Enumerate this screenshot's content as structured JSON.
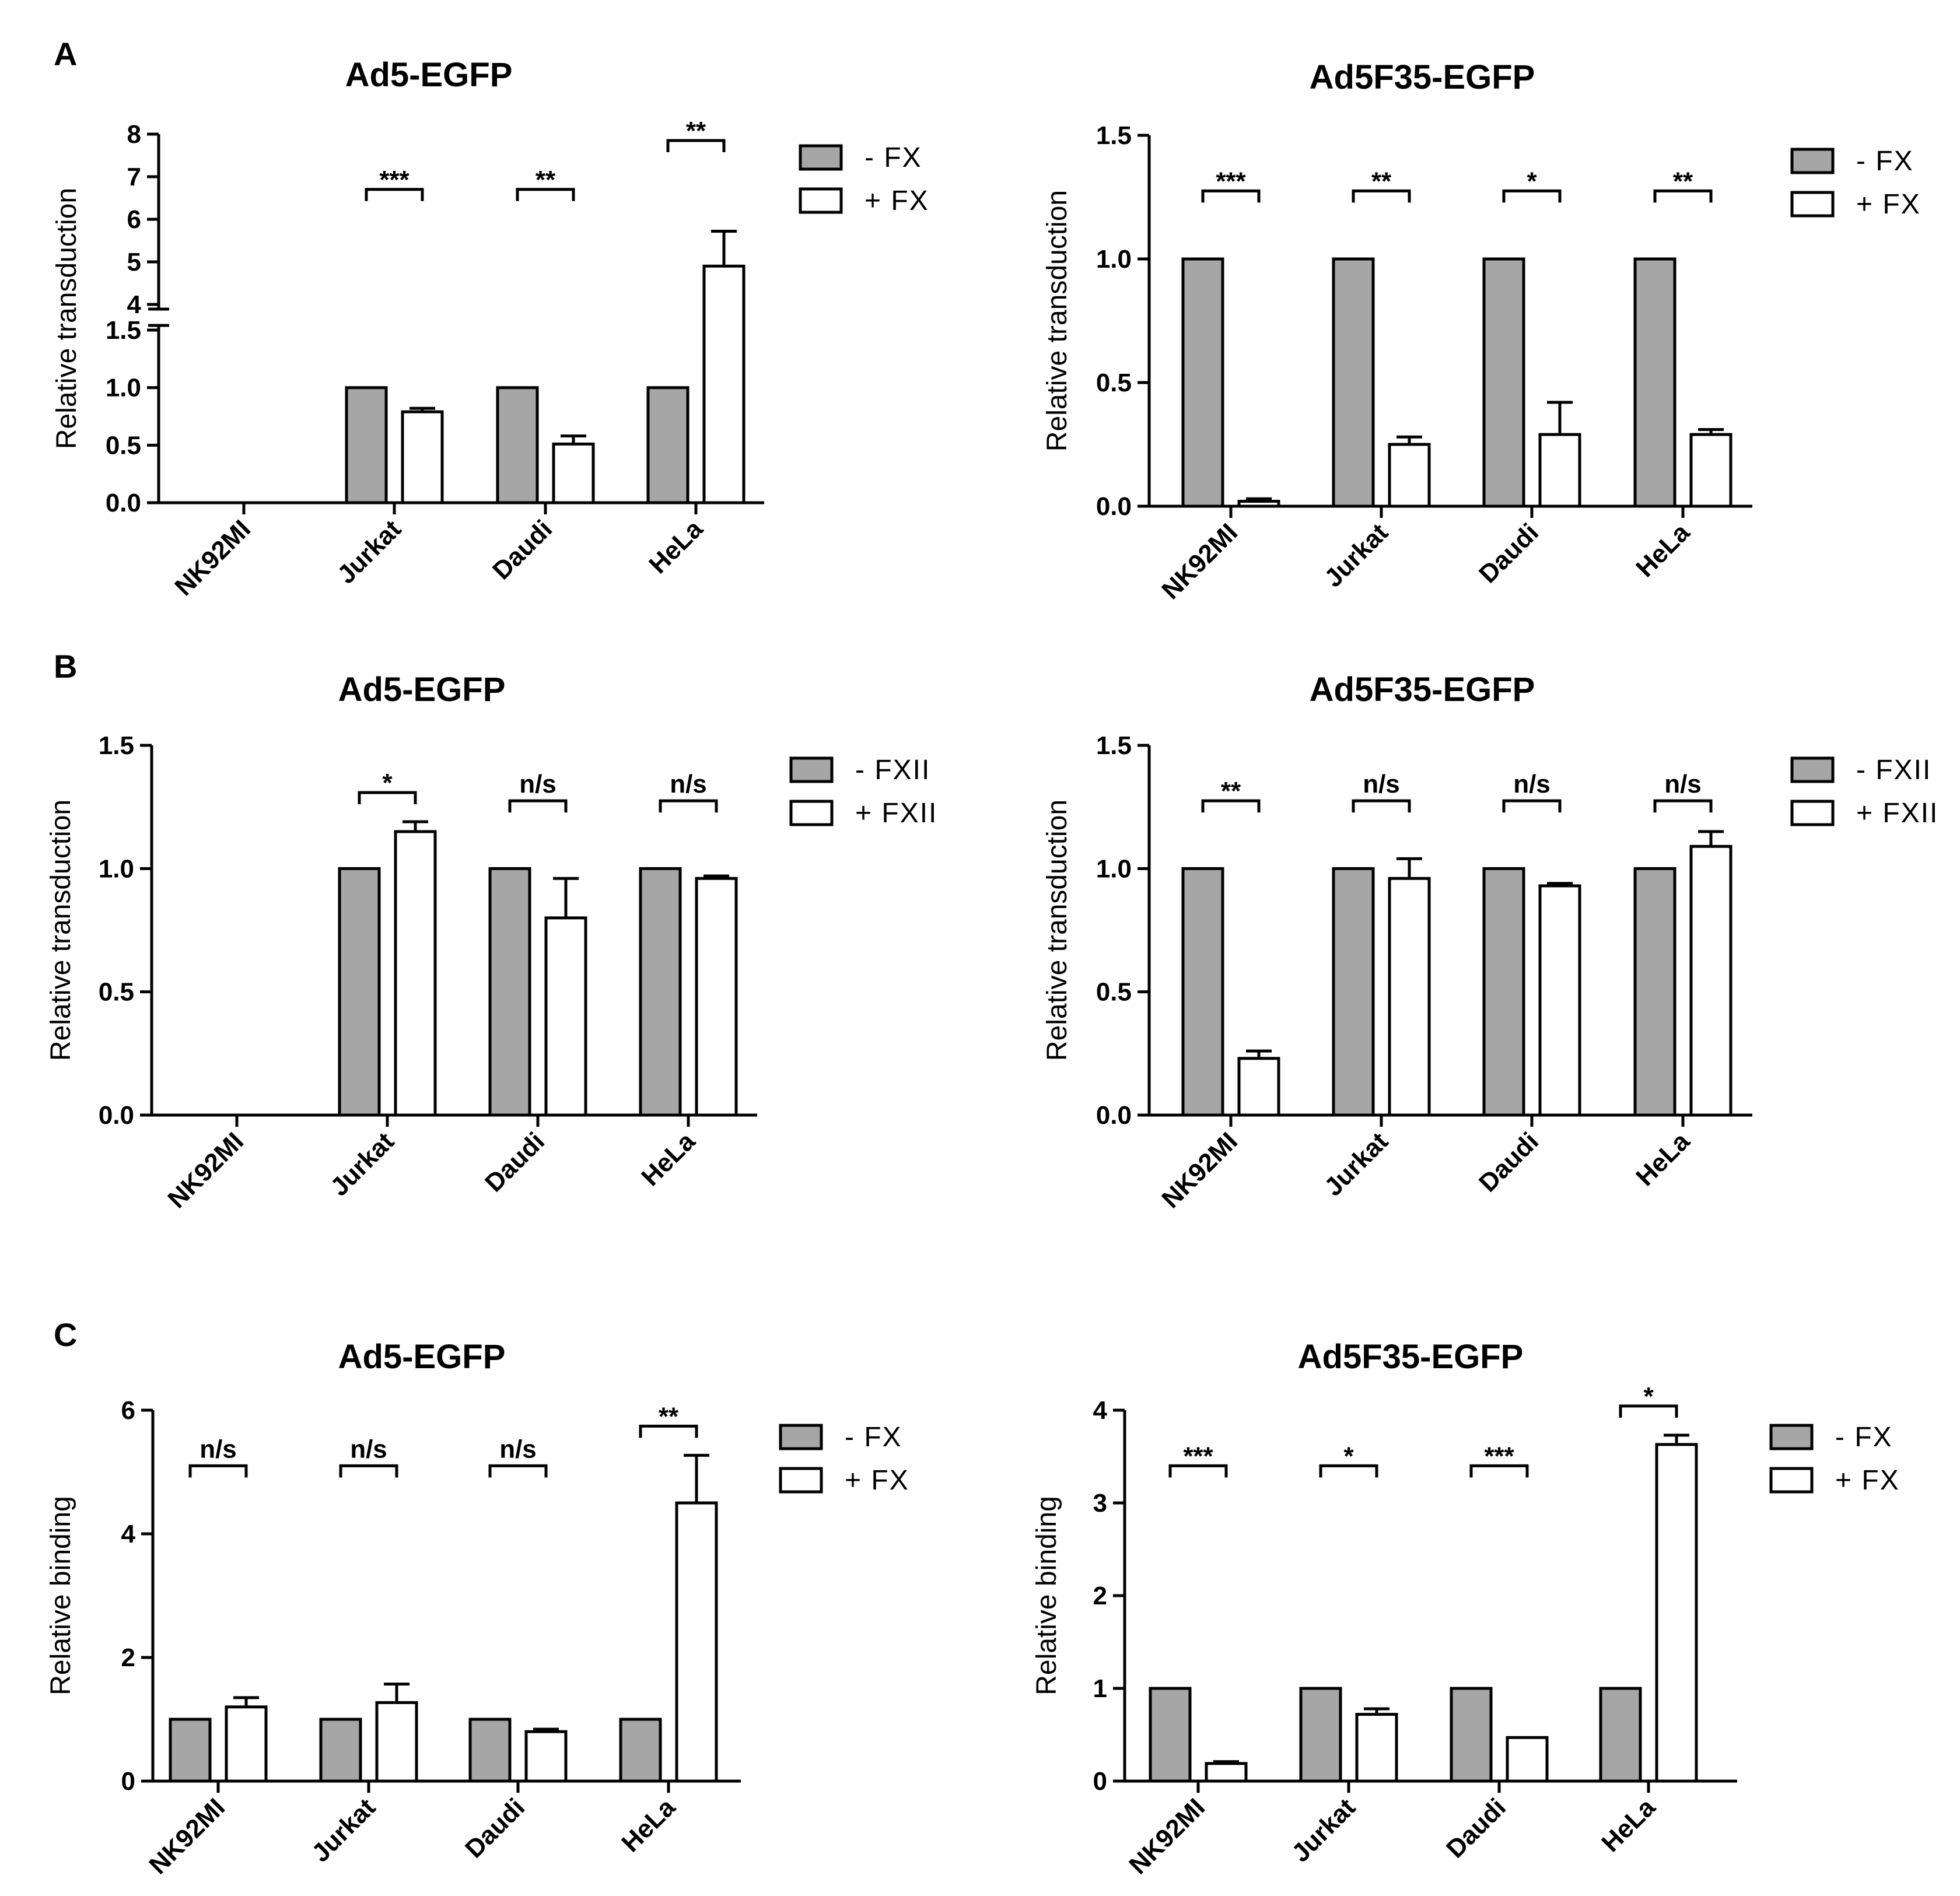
{
  "colors": {
    "minus_bar": "#a6a6a6",
    "plus_bar": "#ffffff",
    "stroke": "#000000"
  },
  "panels": [
    {
      "letter": "A"
    },
    {
      "letter": "B"
    },
    {
      "letter": "C"
    }
  ],
  "chart_data": [
    {
      "type": "bar",
      "panel": "A",
      "title": "Ad5-EGFP",
      "ylabel": "Relative transduction",
      "categories": [
        "NK92MI",
        "Jurkat",
        "Daudi",
        "HeLa"
      ],
      "series": [
        {
          "name": "- FX",
          "values": [
            null,
            1.0,
            1.0,
            1.0
          ],
          "errors": [
            null,
            0,
            0,
            0
          ]
        },
        {
          "name": "+ FX",
          "values": [
            null,
            0.79,
            0.51,
            4.9
          ],
          "errors": [
            null,
            0.03,
            0.07,
            0.82
          ]
        }
      ],
      "axis_break": {
        "lower": [
          0,
          1.5
        ],
        "upper": [
          4,
          8
        ]
      },
      "yticks_lower": [
        "0.0",
        "0.5",
        "1.0",
        "1.5"
      ],
      "yticks_upper": [
        "4",
        "5",
        "6",
        "7",
        "8"
      ],
      "significance": [
        null,
        "***",
        "**",
        "**"
      ],
      "legend": [
        "- FX",
        "+ FX"
      ]
    },
    {
      "type": "bar",
      "panel": "A",
      "title": "Ad5F35-EGFP",
      "ylabel": "Relative transduction",
      "categories": [
        "NK92MI",
        "Jurkat",
        "Daudi",
        "HeLa"
      ],
      "series": [
        {
          "name": "- FX",
          "values": [
            1.0,
            1.0,
            1.0,
            1.0
          ],
          "errors": [
            0,
            0,
            0,
            0
          ]
        },
        {
          "name": "+ FX",
          "values": [
            0.02,
            0.25,
            0.29,
            0.29
          ],
          "errors": [
            0.01,
            0.03,
            0.13,
            0.02
          ]
        }
      ],
      "ylim": [
        0,
        1.5
      ],
      "yticks": [
        "0.0",
        "0.5",
        "1.0",
        "1.5"
      ],
      "significance": [
        "***",
        "**",
        "*",
        "**"
      ],
      "legend": [
        "- FX",
        "+ FX"
      ]
    },
    {
      "type": "bar",
      "panel": "B",
      "title": "Ad5-EGFP",
      "ylabel": "Relative transduction",
      "categories": [
        "NK92MI",
        "Jurkat",
        "Daudi",
        "HeLa"
      ],
      "series": [
        {
          "name": "- FXII",
          "values": [
            null,
            1.0,
            1.0,
            1.0
          ],
          "errors": [
            null,
            0,
            0,
            0
          ]
        },
        {
          "name": "+ FXII",
          "values": [
            null,
            1.15,
            0.8,
            0.96
          ],
          "errors": [
            null,
            0.04,
            0.16,
            0.01
          ]
        }
      ],
      "ylim": [
        0,
        1.5
      ],
      "yticks": [
        "0.0",
        "0.5",
        "1.0",
        "1.5"
      ],
      "significance": [
        null,
        "*",
        "n/s",
        "n/s"
      ],
      "legend": [
        "- FXII",
        "+ FXII"
      ]
    },
    {
      "type": "bar",
      "panel": "B",
      "title": "Ad5F35-EGFP",
      "ylabel": "Relative transduction",
      "categories": [
        "NK92MI",
        "Jurkat",
        "Daudi",
        "HeLa"
      ],
      "series": [
        {
          "name": "- FXII",
          "values": [
            1.0,
            1.0,
            1.0,
            1.0
          ],
          "errors": [
            0,
            0,
            0,
            0
          ]
        },
        {
          "name": "+ FXII",
          "values": [
            0.23,
            0.96,
            0.93,
            1.09
          ],
          "errors": [
            0.03,
            0.08,
            0.01,
            0.06
          ]
        }
      ],
      "ylim": [
        0,
        1.5
      ],
      "yticks": [
        "0.0",
        "0.5",
        "1.0",
        "1.5"
      ],
      "significance": [
        "**",
        "n/s",
        "n/s",
        "n/s"
      ],
      "legend": [
        "- FXII",
        "+ FXII"
      ]
    },
    {
      "type": "bar",
      "panel": "C",
      "title": "Ad5-EGFP",
      "ylabel": "Relative binding",
      "categories": [
        "NK92MI",
        "Jurkat",
        "Daudi",
        "HeLa"
      ],
      "series": [
        {
          "name": "- FX",
          "values": [
            1.0,
            1.0,
            1.0,
            1.0
          ],
          "errors": [
            0,
            0,
            0,
            0
          ]
        },
        {
          "name": "+ FX",
          "values": [
            1.2,
            1.27,
            0.8,
            4.5
          ],
          "errors": [
            0.15,
            0.3,
            0.04,
            0.77
          ]
        }
      ],
      "ylim": [
        0,
        6
      ],
      "yticks": [
        "0",
        "2",
        "4",
        "6"
      ],
      "significance": [
        "n/s",
        "n/s",
        "n/s",
        "**"
      ],
      "legend": [
        "- FX",
        "+ FX"
      ]
    },
    {
      "type": "bar",
      "panel": "C",
      "title": "Ad5F35-EGFP",
      "ylabel": "Relative binding",
      "categories": [
        "NK92MI",
        "Jurkat",
        "Daudi",
        "HeLa"
      ],
      "series": [
        {
          "name": "- FX",
          "values": [
            1.0,
            1.0,
            1.0,
            1.0
          ],
          "errors": [
            0,
            0,
            0,
            0
          ]
        },
        {
          "name": "+ FX",
          "values": [
            0.19,
            0.72,
            0.47,
            3.63
          ],
          "errors": [
            0.02,
            0.06,
            0,
            0.1
          ]
        }
      ],
      "ylim": [
        0,
        4
      ],
      "yticks": [
        "0",
        "1",
        "2",
        "3",
        "4"
      ],
      "significance": [
        "***",
        "*",
        "***",
        "*"
      ],
      "legend": [
        "- FX",
        "+ FX"
      ]
    }
  ]
}
